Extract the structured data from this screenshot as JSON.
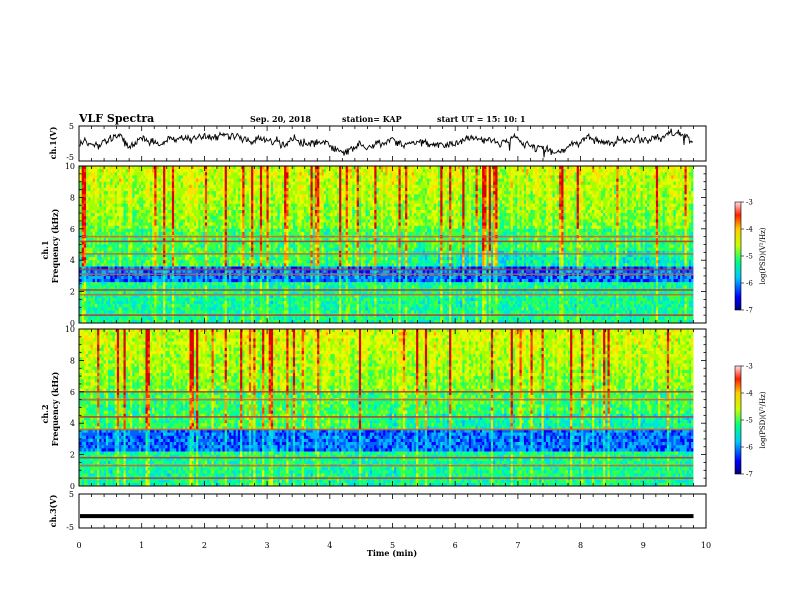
{
  "header": {
    "title": "VLF Spectra",
    "date": "Sep. 20, 2018",
    "station": "station= KAP",
    "start_ut": "start  UT =   15: 10: 1"
  },
  "chart_data": [
    {
      "type": "line",
      "name": "ch1-waveform",
      "ylabel": "ch.1(V)",
      "ylim": [
        -5,
        5
      ],
      "yticks": [
        "5",
        "-5"
      ],
      "xlim": [
        0,
        10
      ],
      "x_end": 9.8,
      "note": "noisy waveform mostly between -2 and +3 V"
    },
    {
      "type": "heatmap",
      "name": "ch1-spectrogram",
      "ylabel": "ch.1\nFrequency  (kHz)",
      "ylim": [
        0,
        10
      ],
      "yticks": [
        "0",
        "2",
        "4",
        "6",
        "8",
        "10"
      ],
      "xlim": [
        0,
        10
      ],
      "x_end": 9.8,
      "colorbar": {
        "label": "log(PSD)(V²/Hz)",
        "range": [
          -7,
          -3
        ],
        "ticks": [
          "-3",
          "-4",
          "-5",
          "-6",
          "-7"
        ]
      },
      "bands_khz": [
        0.5,
        1.8,
        2.1,
        3.1,
        3.4,
        4.4,
        5.2,
        5.5
      ],
      "low_power_khz": [
        2.6,
        3.6
      ]
    },
    {
      "type": "heatmap",
      "name": "ch2-spectrogram",
      "ylabel": "ch.2\nFrequency  (kHz)",
      "ylim": [
        0,
        10
      ],
      "yticks": [
        "0",
        "2",
        "4",
        "6",
        "8",
        "10"
      ],
      "xlim": [
        0,
        10
      ],
      "x_end": 9.8,
      "colorbar": {
        "label": "log(PSD)(V²/Hz)",
        "range": [
          -7,
          -3
        ],
        "ticks": [
          "-3",
          "-4",
          "-5",
          "-6",
          "-7"
        ]
      },
      "bands_khz": [
        0.5,
        1.3,
        1.8,
        3.6,
        4.4,
        5.5,
        6.0
      ],
      "low_power_khz": [
        2.2,
        3.6
      ]
    },
    {
      "type": "line",
      "name": "ch3-waveform",
      "ylabel": "ch.3(V)",
      "ylim": [
        -5,
        5
      ],
      "yticks": [
        "5",
        "-5"
      ],
      "xlim": [
        0,
        10
      ],
      "x_end": 9.8,
      "value": -1.5
    }
  ],
  "xaxis": {
    "label": "Time  (min)",
    "ticks": [
      "0",
      "1",
      "2",
      "3",
      "4",
      "5",
      "6",
      "7",
      "8",
      "9",
      "10"
    ]
  }
}
